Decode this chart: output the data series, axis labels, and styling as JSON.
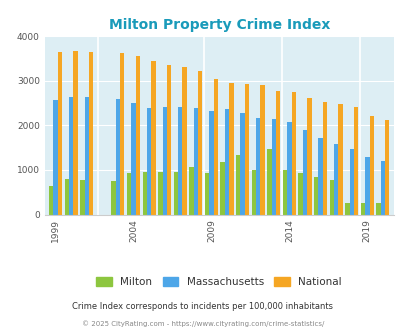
{
  "title": "Milton Property Crime Index",
  "title_color": "#1a9bba",
  "subtitle": "Crime Index corresponds to incidents per 100,000 inhabitants",
  "footer": "© 2025 CityRating.com - https://www.cityrating.com/crime-statistics/",
  "years": [
    1999,
    2000,
    2001,
    2003,
    2004,
    2005,
    2006,
    2007,
    2008,
    2009,
    2010,
    2011,
    2012,
    2013,
    2014,
    2015,
    2016,
    2017,
    2018,
    2019,
    2020
  ],
  "milton": [
    650,
    790,
    780,
    760,
    930,
    960,
    960,
    950,
    1060,
    930,
    1180,
    1340,
    1010,
    1470,
    1010,
    940,
    850,
    780,
    250,
    260,
    260
  ],
  "massachusetts": [
    2580,
    2640,
    2640,
    2590,
    2500,
    2390,
    2410,
    2410,
    2400,
    2330,
    2360,
    2280,
    2170,
    2150,
    2080,
    1890,
    1720,
    1580,
    1470,
    1290,
    1200
  ],
  "national": [
    3650,
    3660,
    3650,
    3620,
    3550,
    3450,
    3360,
    3310,
    3220,
    3050,
    2960,
    2940,
    2900,
    2780,
    2760,
    2620,
    2520,
    2480,
    2410,
    2200,
    2120
  ],
  "milton_color": "#8dc63f",
  "mass_color": "#4da6e8",
  "national_color": "#f5a623",
  "bg_color": "#ddeef4",
  "ylim": [
    0,
    4000
  ],
  "yticks": [
    0,
    1000,
    2000,
    3000,
    4000
  ],
  "xtick_years": [
    1999,
    2004,
    2009,
    2014,
    2019
  ],
  "bar_width": 0.28,
  "figsize": [
    4.06,
    3.3
  ],
  "dpi": 100
}
